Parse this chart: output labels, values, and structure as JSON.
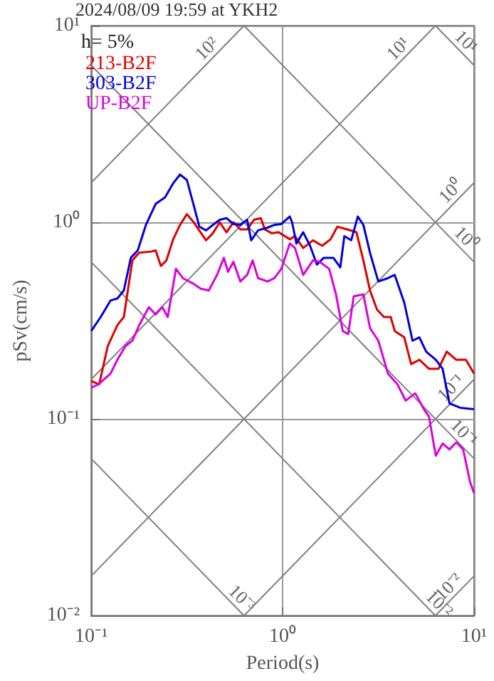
{
  "chart_data": {
    "type": "line",
    "title": "2024/08/09 19:59 at YKH2",
    "xlabel": "Period(s)",
    "ylabel": "pSv(cm/s)",
    "log": "xy",
    "grid": true,
    "legend": "top left",
    "xlim": [
      0.1,
      10
    ],
    "ylim": [
      0.01,
      10
    ],
    "xticks": [
      {
        "value": 0.1,
        "label": "10⁻¹"
      },
      {
        "value": 1,
        "label": "10⁰"
      },
      {
        "value": 10,
        "label": "10¹"
      }
    ],
    "yticks": [
      {
        "value": 0.01,
        "label": "10⁻²"
      },
      {
        "value": 0.1,
        "label": "10⁻¹"
      },
      {
        "value": 1,
        "label": "10⁰"
      },
      {
        "value": 10,
        "label": "10¹"
      }
    ],
    "series": [
      {
        "color": "#808080",
        "x": [
          0.1,
          0.628
        ],
        "values": [
          1.59,
          10
        ]
      },
      {
        "color": "#808080",
        "x": [
          0.1,
          6.28
        ],
        "values": [
          0.159,
          10
        ]
      },
      {
        "color": "#808080",
        "x": [
          0.1,
          10
        ],
        "values": [
          0.0159,
          1.59
        ]
      },
      {
        "color": "#808080",
        "x": [
          0.628,
          10
        ],
        "values": [
          0.01,
          0.159
        ]
      },
      {
        "color": "#808080",
        "x": [
          6.28,
          10
        ],
        "values": [
          0.01,
          0.0159
        ]
      },
      {
        "color": "#808080",
        "x": [
          6.28,
          10
        ],
        "values": [
          10,
          6.28
        ]
      },
      {
        "color": "#808080",
        "x": [
          0.628,
          10
        ],
        "values": [
          10,
          0.628
        ]
      },
      {
        "color": "#808080",
        "x": [
          0.1,
          10
        ],
        "values": [
          6.28,
          0.0628
        ]
      },
      {
        "color": "#808080",
        "x": [
          0.1,
          6.28
        ],
        "values": [
          0.628,
          0.01
        ]
      },
      {
        "color": "#808080",
        "x": [
          0.1,
          0.628
        ],
        "values": [
          0.0628,
          0.01
        ]
      },
      {
        "name": "213-B2F",
        "color": "#dd0000",
        "x": [
          0.1,
          0.11,
          0.122,
          0.137,
          0.148,
          0.164,
          0.178,
          0.206,
          0.217,
          0.231,
          0.247,
          0.268,
          0.291,
          0.316,
          0.343,
          0.398,
          0.432,
          0.469,
          0.509,
          0.553,
          0.601,
          0.652,
          0.708,
          0.769,
          0.807,
          0.877,
          0.952,
          1.09,
          1.16,
          1.28,
          1.44,
          1.61,
          1.78,
          1.93,
          2.17,
          2.43,
          2.64,
          2.86,
          3.11,
          3.38,
          3.67,
          3.85,
          4.32,
          4.69,
          5.18,
          5.81,
          6.52,
          7.2,
          8.07,
          9.06,
          10
        ],
        "values": [
          0.156,
          0.15,
          0.235,
          0.3,
          0.33,
          0.64,
          0.7,
          0.71,
          0.72,
          0.6,
          0.64,
          0.82,
          0.97,
          1.1,
          1.0,
          0.81,
          0.88,
          1.0,
          0.89,
          1.0,
          0.92,
          0.92,
          1.03,
          1.05,
          0.92,
          0.88,
          0.89,
          0.82,
          0.85,
          0.74,
          0.81,
          0.76,
          0.82,
          0.95,
          0.92,
          0.89,
          0.64,
          0.45,
          0.36,
          0.33,
          0.33,
          0.28,
          0.26,
          0.19,
          0.2,
          0.18,
          0.18,
          0.22,
          0.2,
          0.2,
          0.17
        ]
      },
      {
        "name": "303-B2F",
        "color": "#0000dd",
        "x": [
          0.1,
          0.112,
          0.126,
          0.137,
          0.148,
          0.161,
          0.175,
          0.193,
          0.217,
          0.243,
          0.268,
          0.291,
          0.316,
          0.343,
          0.367,
          0.398,
          0.432,
          0.469,
          0.509,
          0.553,
          0.601,
          0.652,
          0.685,
          0.744,
          0.834,
          0.906,
          0.984,
          1.09,
          1.12,
          1.18,
          1.28,
          1.39,
          1.51,
          1.64,
          1.84,
          2.0,
          2.1,
          2.28,
          2.47,
          2.64,
          2.86,
          3.16,
          3.55,
          3.85,
          4.32,
          4.77,
          5.18,
          5.62,
          6.31,
          6.85,
          7.44,
          8.48,
          10
        ],
        "values": [
          0.28,
          0.33,
          0.4,
          0.41,
          0.45,
          0.66,
          0.72,
          0.97,
          1.24,
          1.34,
          1.58,
          1.75,
          1.64,
          1.22,
          0.95,
          0.91,
          0.97,
          1.03,
          1.05,
          0.98,
          0.97,
          1.03,
          0.81,
          0.91,
          0.94,
          0.97,
          0.98,
          1.07,
          1.0,
          0.78,
          0.89,
          0.76,
          0.61,
          0.66,
          0.66,
          0.59,
          0.85,
          0.81,
          1.07,
          0.97,
          0.7,
          0.5,
          0.52,
          0.54,
          0.39,
          0.25,
          0.26,
          0.22,
          0.2,
          0.18,
          0.12,
          0.114,
          0.112
        ]
      },
      {
        "name": "UP-B2F",
        "color": "#dd00dd",
        "x": [
          0.1,
          0.109,
          0.126,
          0.137,
          0.151,
          0.164,
          0.178,
          0.2,
          0.217,
          0.235,
          0.251,
          0.277,
          0.301,
          0.338,
          0.373,
          0.411,
          0.454,
          0.493,
          0.518,
          0.553,
          0.601,
          0.652,
          0.697,
          0.744,
          0.834,
          0.906,
          0.984,
          1.09,
          1.16,
          1.28,
          1.44,
          1.56,
          1.75,
          1.9,
          2.06,
          2.2,
          2.35,
          2.64,
          2.86,
          3.16,
          3.55,
          3.98,
          4.39,
          4.93,
          5.53,
          5.81,
          6.31,
          6.85,
          7.44,
          8.07,
          8.77,
          9.52,
          10
        ],
        "values": [
          0.144,
          0.15,
          0.17,
          0.2,
          0.235,
          0.25,
          0.3,
          0.37,
          0.34,
          0.37,
          0.33,
          0.58,
          0.52,
          0.49,
          0.46,
          0.45,
          0.54,
          0.66,
          0.56,
          0.63,
          0.5,
          0.54,
          0.64,
          0.52,
          0.5,
          0.52,
          0.58,
          0.78,
          0.74,
          0.54,
          0.64,
          0.63,
          0.58,
          0.43,
          0.28,
          0.27,
          0.42,
          0.43,
          0.29,
          0.25,
          0.17,
          0.15,
          0.124,
          0.135,
          0.11,
          0.103,
          0.065,
          0.075,
          0.07,
          0.076,
          0.07,
          0.048,
          0.042
        ]
      }
    ],
    "annotations": [
      "h= 5%",
      {
        "text": "10²",
        "x": 0.44,
        "y": 7.0
      },
      {
        "text": "10¹",
        "x": 4.4,
        "y": 7.0
      },
      {
        "text": "10¹",
        "x": 8.3,
        "y": 7.57
      },
      {
        "text": "10⁰",
        "x": 8.3,
        "y": 1.32
      },
      {
        "text": "10⁰",
        "x": 8.3,
        "y": 0.757
      },
      {
        "text": "10⁻¹",
        "x": 8.3,
        "y": 0.132
      },
      {
        "text": "10⁻¹",
        "x": 8.07,
        "y": 0.0779
      },
      {
        "text": "10⁻²",
        "x": 8.07,
        "y": 0.0128
      },
      {
        "text": "10⁻²",
        "x": 6.0,
        "y": 0.0105
      },
      {
        "text": "10⁻³",
        "x": 0.56,
        "y": 0.0112
      }
    ]
  }
}
